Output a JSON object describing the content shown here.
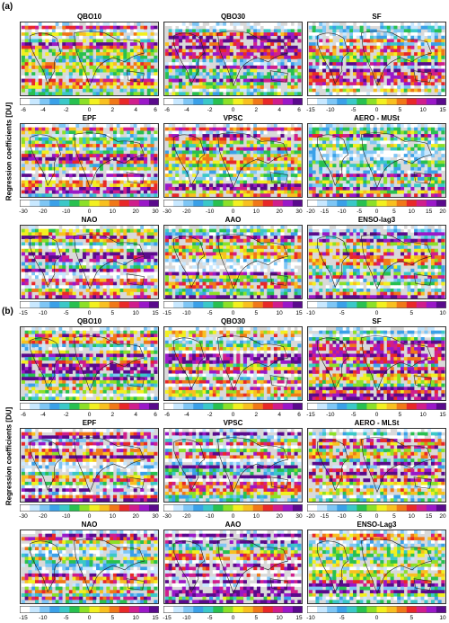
{
  "figure": {
    "ylabel": "Regression coefficients [DU]",
    "colors": {
      "land": "#d9d9d9",
      "colormap": [
        "#ffffff",
        "#c8e8ff",
        "#7ec6f5",
        "#3aa0e8",
        "#3bc8c8",
        "#28c050",
        "#8ce028",
        "#f2f020",
        "#f8c020",
        "#f07818",
        "#e82828",
        "#d01e8c",
        "#9a18c8",
        "#5a0a8c"
      ]
    }
  },
  "chart_data": [
    {
      "label": "(a)",
      "maps": [
        {
          "title": "QBO10",
          "type": "heatmap",
          "ticks": [
            "-6",
            "-4",
            "-2",
            "0",
            "2",
            "4",
            "6"
          ],
          "range": [
            -6,
            6
          ]
        },
        {
          "title": "QBO30",
          "type": "heatmap",
          "ticks": [
            "-6",
            "-4",
            "-2",
            "0",
            "2",
            "4",
            "6"
          ],
          "range": [
            -6,
            6
          ]
        },
        {
          "title": "SF",
          "type": "heatmap",
          "ticks": [
            "-15",
            "-10",
            "-5",
            "0",
            "5",
            "10",
            "15"
          ],
          "range": [
            -15,
            15
          ]
        },
        {
          "title": "EPF",
          "type": "heatmap",
          "ticks": [
            "-30",
            "-20",
            "-10",
            "0",
            "10",
            "20",
            "30"
          ],
          "range": [
            -30,
            30
          ]
        },
        {
          "title": "VPSC",
          "type": "heatmap",
          "ticks": [
            "-30",
            "-20",
            "-10",
            "0",
            "10",
            "20",
            "30"
          ],
          "range": [
            -30,
            30
          ]
        },
        {
          "title": "AERO - MUSt",
          "type": "heatmap",
          "ticks": [
            "-20",
            "-15",
            "-10",
            "-5",
            "0",
            "5",
            "10",
            "15",
            "20"
          ],
          "range": [
            -20,
            20
          ]
        },
        {
          "title": "NAO",
          "type": "heatmap",
          "ticks": [
            "-15",
            "-10",
            "-5",
            "0",
            "5",
            "10",
            "15"
          ],
          "range": [
            -15,
            15
          ]
        },
        {
          "title": "AAO",
          "type": "heatmap",
          "ticks": [
            "-15",
            "-10",
            "-5",
            "0",
            "5",
            "10",
            "15"
          ],
          "range": [
            -15,
            15
          ]
        },
        {
          "title": "ENSO-lag3",
          "type": "heatmap",
          "ticks": [
            "-10",
            "-5",
            "0",
            "5",
            "10"
          ],
          "range": [
            -10,
            10
          ]
        }
      ]
    },
    {
      "label": "(b)",
      "maps": [
        {
          "title": "QBO10",
          "type": "heatmap",
          "ticks": [
            "-6",
            "-4",
            "-2",
            "0",
            "2",
            "4",
            "6"
          ],
          "range": [
            -6,
            6
          ]
        },
        {
          "title": "QBO30",
          "type": "heatmap",
          "ticks": [
            "-6",
            "-4",
            "-2",
            "0",
            "2",
            "4",
            "6"
          ],
          "range": [
            -6,
            6
          ]
        },
        {
          "title": "SF",
          "type": "heatmap",
          "ticks": [
            "-15",
            "-10",
            "-5",
            "0",
            "5",
            "10",
            "15"
          ],
          "range": [
            -15,
            15
          ]
        },
        {
          "title": "EPF",
          "type": "heatmap",
          "ticks": [
            "-30",
            "-20",
            "-10",
            "0",
            "10",
            "20",
            "30"
          ],
          "range": [
            -30,
            30
          ]
        },
        {
          "title": "VPSC",
          "type": "heatmap",
          "ticks": [
            "-30",
            "-20",
            "-10",
            "0",
            "10",
            "20",
            "30"
          ],
          "range": [
            -30,
            30
          ]
        },
        {
          "title": "AERO - MLSt",
          "type": "heatmap",
          "ticks": [
            "-20",
            "-15",
            "-10",
            "-5",
            "0",
            "5",
            "10",
            "15",
            "20"
          ],
          "range": [
            -20,
            20
          ]
        },
        {
          "title": "NAO",
          "type": "heatmap",
          "ticks": [
            "-15",
            "-10",
            "-5",
            "0",
            "5",
            "10",
            "15"
          ],
          "range": [
            -15,
            15
          ]
        },
        {
          "title": "AAO",
          "type": "heatmap",
          "ticks": [
            "-15",
            "-10",
            "-5",
            "0",
            "5",
            "10",
            "15"
          ],
          "range": [
            -15,
            15
          ]
        },
        {
          "title": "ENSO-Lag3",
          "type": "heatmap",
          "ticks": [
            "-10",
            "-5",
            "0",
            "5",
            "10"
          ],
          "range": [
            -10,
            10
          ]
        }
      ]
    }
  ]
}
